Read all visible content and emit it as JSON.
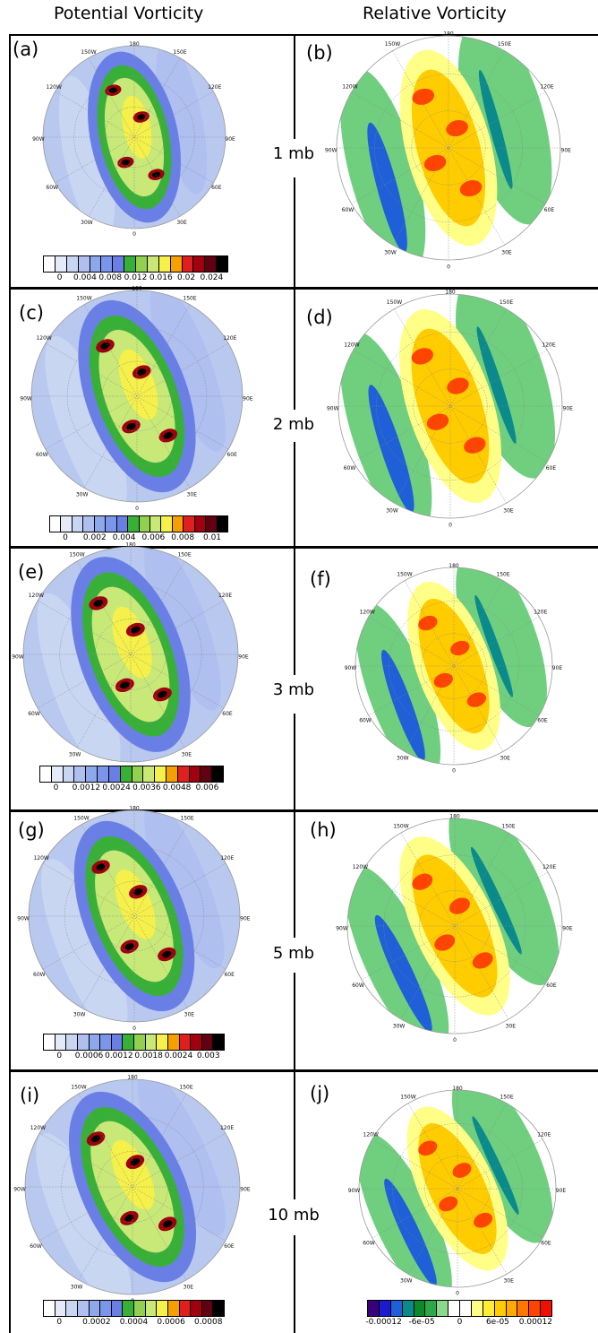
{
  "column_titles": {
    "pv": "Potential Vorticity",
    "rv": "Relative Vorticity"
  },
  "levels": [
    "1 mb",
    "2 mb",
    "3 mb",
    "5 mb",
    "10 mb"
  ],
  "panel_labels": [
    "(a)",
    "(b)",
    "(c)",
    "(d)",
    "(e)",
    "(f)",
    "(g)",
    "(h)",
    "(i)",
    "(j)"
  ],
  "longitude_labels": [
    "180",
    "150W",
    "150E",
    "120W",
    "120E",
    "90W",
    "90E",
    "60W",
    "60E",
    "30W",
    "30E",
    "0"
  ],
  "colors": {
    "pv_scale": [
      "#ffffff",
      "#e4eaf7",
      "#c9d6f2",
      "#aebff0",
      "#8ea8ec",
      "#7a95ea",
      "#6a7fe6",
      "#38b038",
      "#92d050",
      "#c8e878",
      "#f5f04a",
      "#f5a000",
      "#e02020",
      "#a00010",
      "#600010",
      "#000000"
    ],
    "rv_scale": [
      "#3a007a",
      "#1a1ad0",
      "#1f5fd8",
      "#0a8a8a",
      "#0b8a2a",
      "#2aa84a",
      "#8ad88a",
      "#ffffff",
      "#ffffff",
      "#ffff88",
      "#ffee33",
      "#ffcc00",
      "#ffaa00",
      "#ff7700",
      "#ff4400",
      "#ee1100"
    ],
    "rv_bg": "#6fcf7f",
    "pv_bg": "#b8c8ef"
  },
  "colorbars": {
    "a": [
      "0",
      "0.004",
      "0.008",
      "0.012",
      "0.016",
      "0.02",
      "0.024"
    ],
    "c": [
      "0",
      "0.002",
      "0.004",
      "0.006",
      "0.008",
      "0.01"
    ],
    "e": [
      "0",
      "0.0012",
      "0.0024",
      "0.0036",
      "0.0048",
      "0.006"
    ],
    "g": [
      "0",
      "0.0006",
      "0.0012",
      "0.0018",
      "0.0024",
      "0.003"
    ],
    "i": [
      "0",
      "0.0002",
      "0.0004",
      "0.0006",
      "0.0008"
    ],
    "j": [
      "-0.00012",
      "-6e-05",
      "0",
      "6e-05",
      "0.00012"
    ]
  }
}
